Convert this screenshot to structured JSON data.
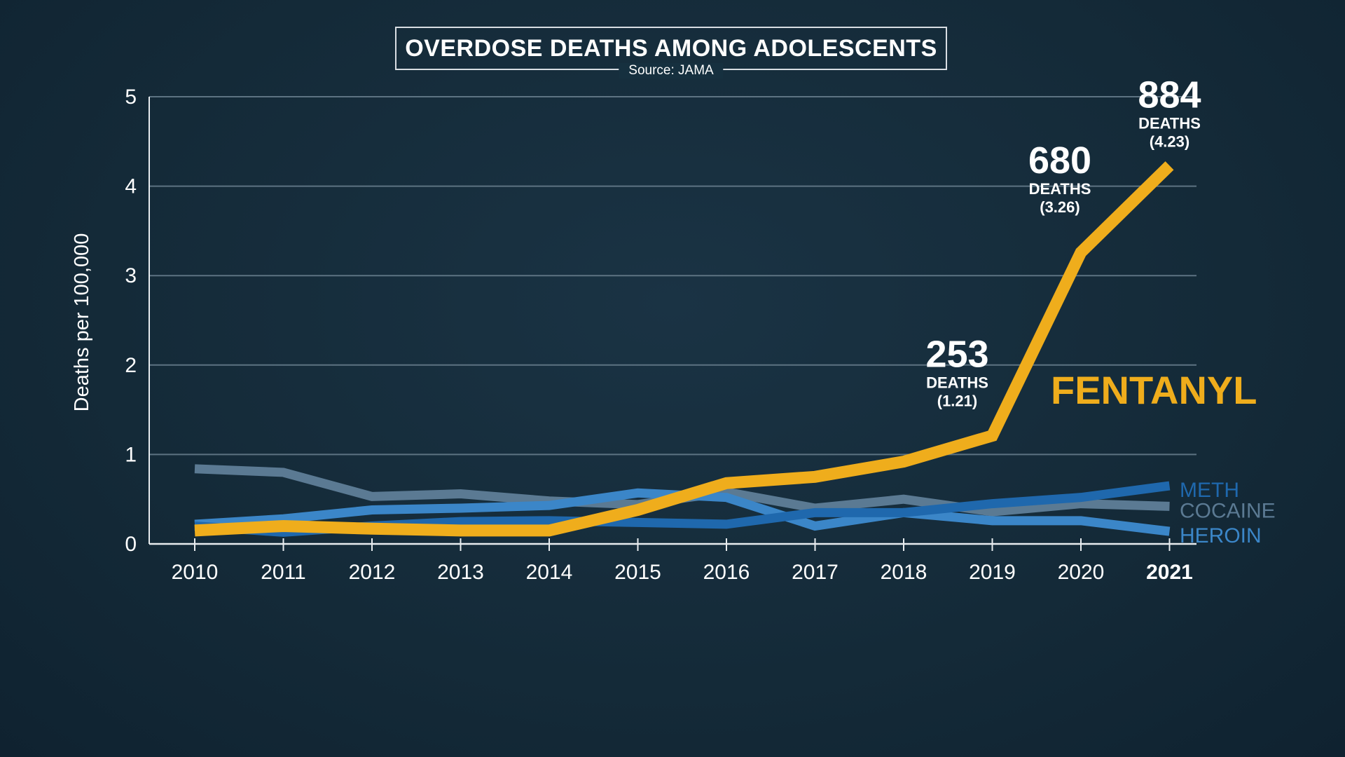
{
  "chart_data": {
    "type": "line",
    "title": "OVERDOSE DEATHS AMONG ADOLESCENTS",
    "subtitle": "Source: JAMA",
    "ylabel": "Deaths per 100,000",
    "xlabel": "",
    "ylim": [
      0,
      5
    ],
    "yticks": [
      "0",
      "1",
      "2",
      "3",
      "4",
      "5"
    ],
    "x": [
      "2010",
      "2011",
      "2012",
      "2013",
      "2014",
      "2015",
      "2016",
      "2017",
      "2018",
      "2019",
      "2020",
      "2021"
    ],
    "grid": true,
    "series": [
      {
        "name": "COCAINE",
        "color": "#5b7a93",
        "values": [
          0.84,
          0.8,
          0.53,
          0.56,
          0.48,
          0.44,
          0.58,
          0.4,
          0.5,
          0.36,
          0.45,
          0.42
        ]
      },
      {
        "name": "HEROIN",
        "color": "#3b86c8",
        "values": [
          0.22,
          0.28,
          0.38,
          0.4,
          0.43,
          0.57,
          0.52,
          0.2,
          0.35,
          0.26,
          0.26,
          0.14
        ]
      },
      {
        "name": "METH",
        "color": "#1f68ad",
        "values": [
          0.2,
          0.13,
          0.2,
          0.25,
          0.26,
          0.24,
          0.22,
          0.35,
          0.35,
          0.45,
          0.52,
          0.65
        ]
      },
      {
        "name": "FENTANYL",
        "color": "#efad1c",
        "values": [
          0.15,
          0.2,
          0.17,
          0.15,
          0.15,
          0.38,
          0.68,
          0.75,
          0.92,
          1.21,
          3.26,
          4.23
        ]
      }
    ],
    "annotations": [
      {
        "x": "2019",
        "count": "253",
        "unit": "DEATHS",
        "rate": "(1.21)"
      },
      {
        "x": "2020",
        "count": "680",
        "unit": "DEATHS",
        "rate": "(3.26)"
      },
      {
        "x": "2021",
        "count": "884",
        "unit": "DEATHS",
        "rate": "(4.23)"
      }
    ]
  }
}
